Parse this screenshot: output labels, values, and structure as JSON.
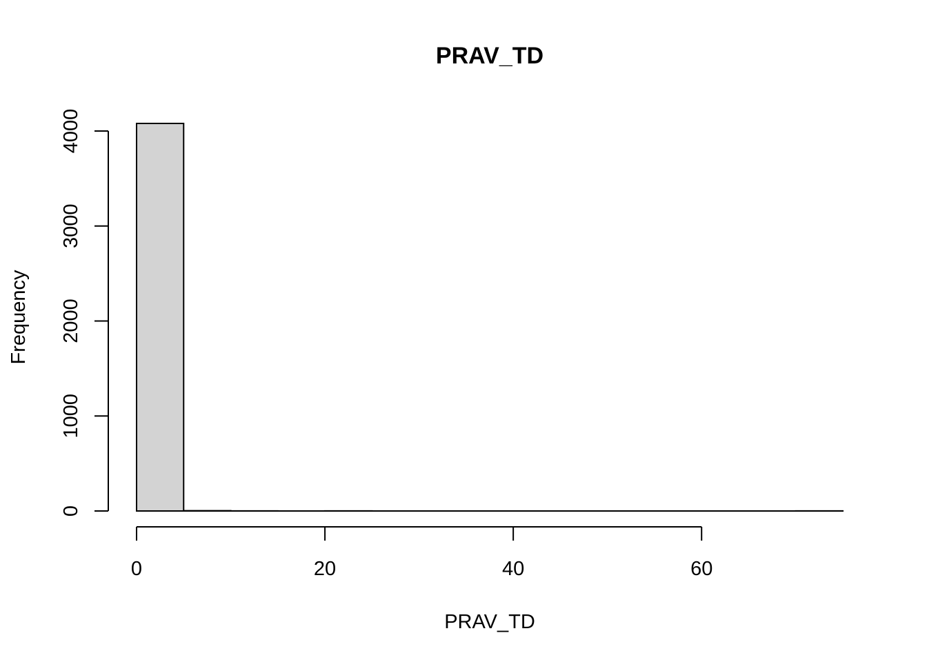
{
  "chart_data": {
    "type": "bar",
    "subtype": "histogram",
    "title": "PRAV_TD",
    "xlabel": "PRAV_TD",
    "ylabel": "Frequency",
    "bins": [
      {
        "start": 0,
        "end": 5,
        "count": 4080
      },
      {
        "start": 5,
        "end": 10,
        "count": 3
      },
      {
        "start": 10,
        "end": 15,
        "count": 1
      },
      {
        "start": 15,
        "end": 20,
        "count": 0
      },
      {
        "start": 20,
        "end": 25,
        "count": 1
      },
      {
        "start": 25,
        "end": 30,
        "count": 0
      },
      {
        "start": 30,
        "end": 35,
        "count": 0
      },
      {
        "start": 35,
        "end": 40,
        "count": 0
      },
      {
        "start": 40,
        "end": 45,
        "count": 0
      },
      {
        "start": 45,
        "end": 50,
        "count": 0
      },
      {
        "start": 50,
        "end": 55,
        "count": 0
      },
      {
        "start": 55,
        "end": 60,
        "count": 0
      },
      {
        "start": 60,
        "end": 65,
        "count": 0
      },
      {
        "start": 65,
        "end": 70,
        "count": 0
      },
      {
        "start": 70,
        "end": 75,
        "count": 1
      }
    ],
    "xlim": [
      0,
      75
    ],
    "ylim": [
      0,
      4080
    ],
    "xticks": [
      0,
      20,
      40,
      60
    ],
    "yticks": [
      0,
      1000,
      2000,
      3000,
      4000
    ],
    "xtick_labels": [
      "0",
      "20",
      "40",
      "60"
    ],
    "ytick_labels": [
      "0",
      "1000",
      "2000",
      "3000",
      "4000"
    ],
    "bar_color": "#d3d3d3",
    "grid": false
  }
}
